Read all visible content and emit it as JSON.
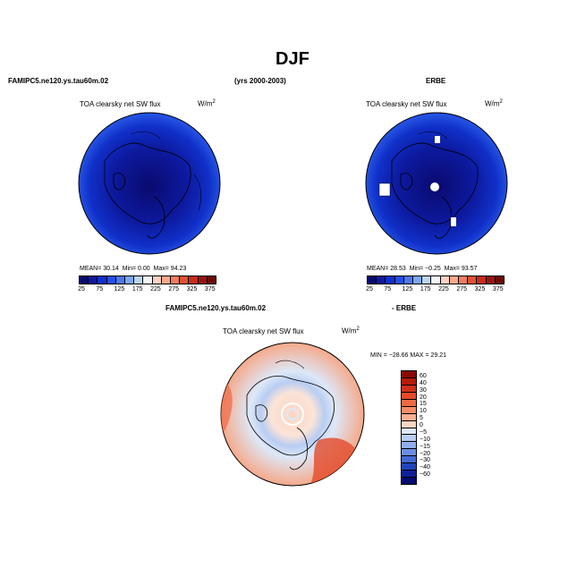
{
  "figure": {
    "title": "DJF"
  },
  "headers": {
    "model": "FAMIPC5.ne120.ys.tau60m.02",
    "years": "(yrs 2000-2003)",
    "obs": "ERBE",
    "diff_model": "FAMIPC5.ne120.ys.tau60m.02",
    "diff_obs": "- ERBE"
  },
  "panels": [
    {
      "id": "model",
      "variable": "TOA clearsky net SW flux",
      "units_base": "W/m",
      "units_exp": "2",
      "stats": {
        "mean_label": "MEAN=",
        "mean": "30.14",
        "min_label": "Min=",
        "min": "0.00",
        "max_label": "Max=",
        "max": "94.23"
      }
    },
    {
      "id": "obs",
      "variable": "TOA clearsky net SW flux",
      "units_base": "W/m",
      "units_exp": "2",
      "stats": {
        "mean_label": "MEAN=",
        "mean": "28.53",
        "min_label": "Min=",
        "min": "−0.25",
        "max_label": "Max=",
        "max": "93.57"
      }
    },
    {
      "id": "diff",
      "variable": "TOA clearsky net SW flux",
      "units_base": "W/m",
      "units_exp": "2",
      "stats": {
        "text": "MIN = −28.66  MAX =  29.21"
      }
    }
  ],
  "colorbar_abs": {
    "labels": [
      "25",
      "75",
      "125",
      "175",
      "225",
      "275",
      "325",
      "375"
    ],
    "colors": [
      "#0a0a6e",
      "#0d1aa0",
      "#1030c8",
      "#2350e0",
      "#4a78ee",
      "#7ea6f5",
      "#bcd2f8",
      "#f4f4f4",
      "#fad2bf",
      "#f5a98a",
      "#ee7d5c",
      "#de5333",
      "#c42d17",
      "#9a1508",
      "#6a0a05"
    ]
  },
  "colorbar_diff": {
    "labels": [
      "60",
      "40",
      "30",
      "20",
      "15",
      "10",
      "5",
      "0",
      "−5",
      "−10",
      "−15",
      "−20",
      "−30",
      "−40",
      "−60"
    ],
    "colors": [
      "#8a0a02",
      "#b51a0a",
      "#d0301a",
      "#e24a2a",
      "#ee6a45",
      "#f58c68",
      "#f9b090",
      "#fcd5c0",
      "#dde8f8",
      "#b8cdf2",
      "#8fb0ec",
      "#6a8fe2",
      "#4468d4",
      "#2244bb",
      "#10209a",
      "#060c6e"
    ]
  },
  "icons": {
    "map": "polar-stereographic-map"
  }
}
